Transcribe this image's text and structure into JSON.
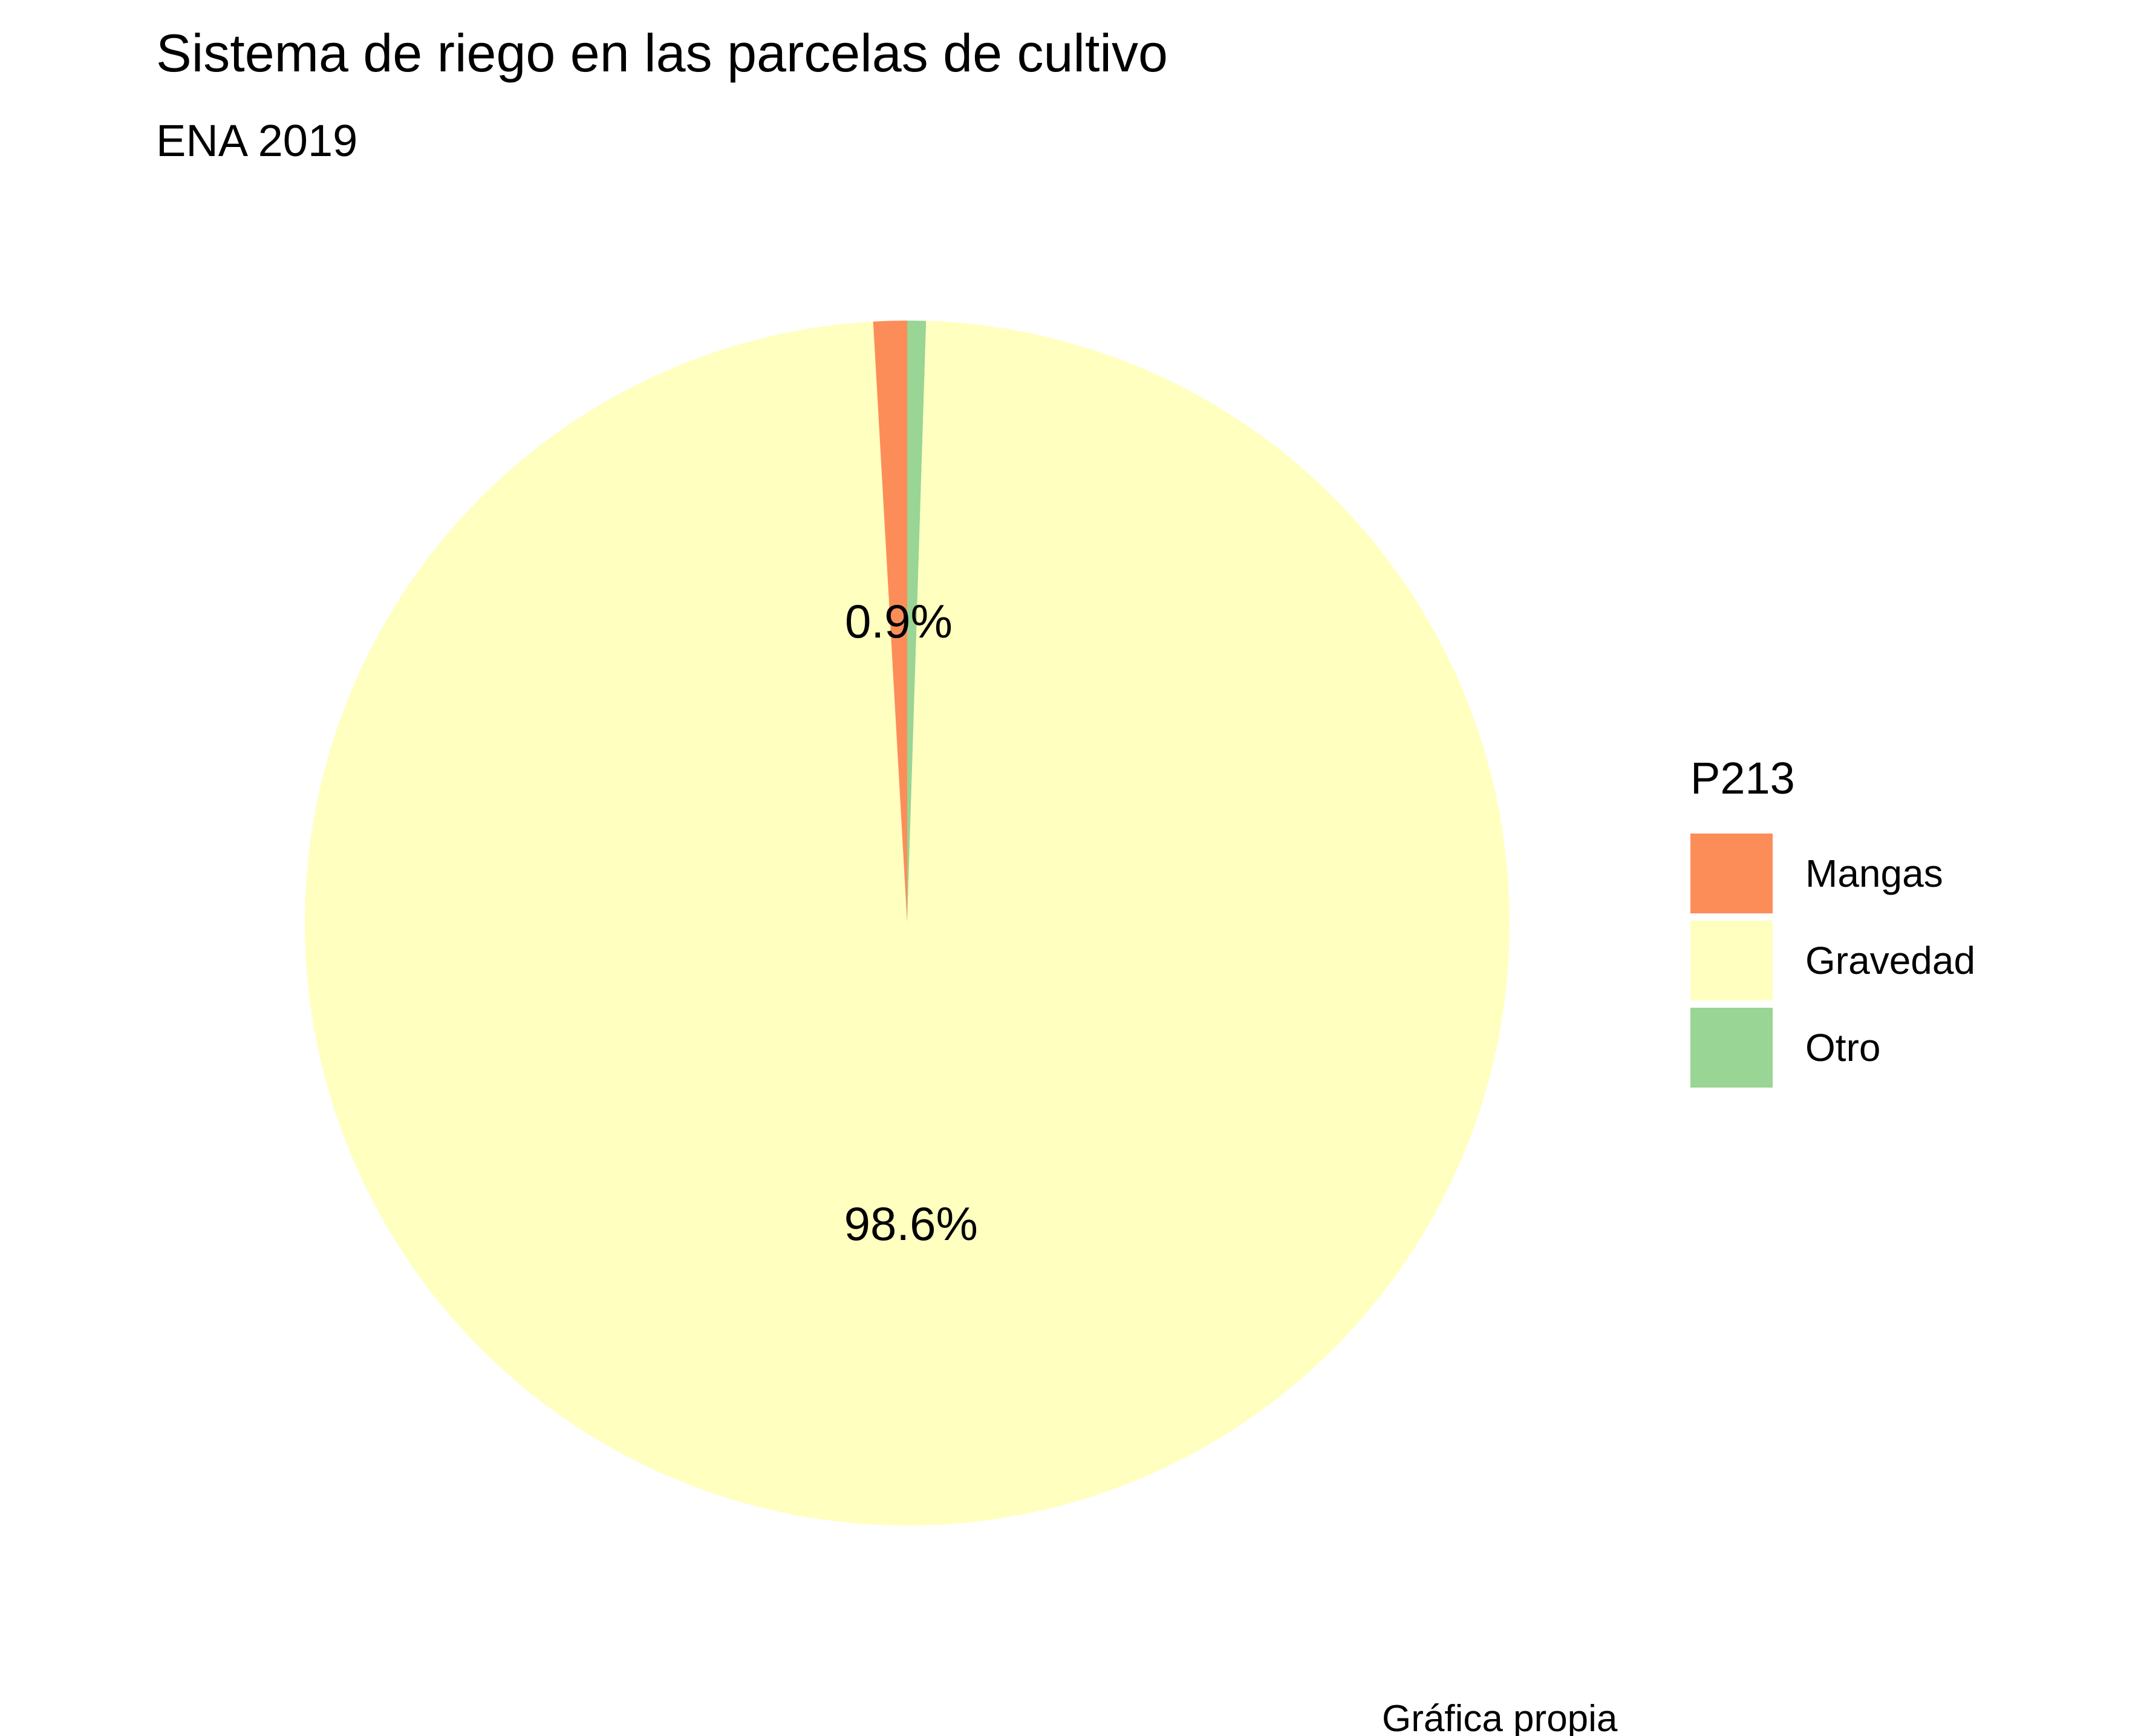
{
  "chart_data": {
    "type": "pie",
    "title": "Sistema de riego en las parcelas de cultivo",
    "subtitle": "ENA 2019",
    "caption": "Gráfica propia",
    "legend": {
      "title": "P213",
      "position": "right"
    },
    "slices": [
      {
        "label": "Mangas",
        "value": 0.9,
        "value_label": "0.9%",
        "color": "#FC8D59"
      },
      {
        "label": "Gravedad",
        "value": 98.6,
        "value_label": "98.6%",
        "color": "#FFFFBF"
      },
      {
        "label": "Otro",
        "value": 0.5,
        "value_label": "",
        "color": "#99D594"
      }
    ],
    "unit": "%"
  }
}
